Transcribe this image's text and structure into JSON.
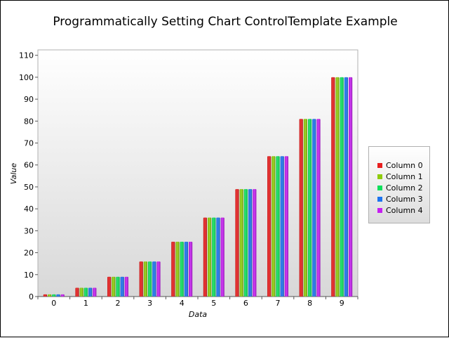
{
  "chart_data": {
    "type": "bar",
    "title": "Programmatically Setting Chart ControlTemplate Example",
    "xlabel": "Data",
    "ylabel": "Value",
    "ylim": [
      0,
      110
    ],
    "yticks": [
      "0",
      "10",
      "20",
      "30",
      "40",
      "50",
      "60",
      "70",
      "80",
      "90",
      "100",
      "110"
    ],
    "categories": [
      "0",
      "1",
      "2",
      "3",
      "4",
      "5",
      "6",
      "7",
      "8",
      "9"
    ],
    "series": [
      {
        "name": "Column 0",
        "color": "#e81f1f",
        "values": [
          1,
          4,
          9,
          16,
          25,
          36,
          49,
          64,
          81,
          100
        ]
      },
      {
        "name": "Column 1",
        "color": "#8fcc0c",
        "values": [
          1,
          4,
          9,
          16,
          25,
          36,
          49,
          64,
          81,
          100
        ]
      },
      {
        "name": "Column 2",
        "color": "#0ee05c",
        "values": [
          1,
          4,
          9,
          16,
          25,
          36,
          49,
          64,
          81,
          100
        ]
      },
      {
        "name": "Column 3",
        "color": "#1c74f0",
        "values": [
          1,
          4,
          9,
          16,
          25,
          36,
          49,
          64,
          81,
          100
        ]
      },
      {
        "name": "Column 4",
        "color": "#c51ff0",
        "values": [
          1,
          4,
          9,
          16,
          25,
          36,
          49,
          64,
          81,
          100
        ]
      }
    ],
    "grid": false,
    "legend_position": "right"
  }
}
